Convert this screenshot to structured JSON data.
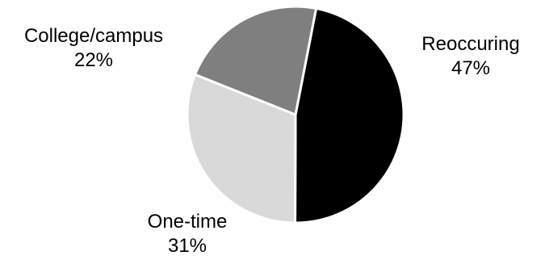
{
  "chart_data": {
    "type": "pie",
    "slices": [
      {
        "label": "Reoccuring",
        "value": 47,
        "value_label": "47%",
        "color": "#000000"
      },
      {
        "label": "One-time",
        "value": 31,
        "value_label": "31%",
        "color": "#d9d9d9"
      },
      {
        "label": "College/campus",
        "value": 22,
        "value_label": "22%",
        "color": "#7f7f7f"
      }
    ],
    "start": "top, slightly right of center",
    "direction": "clockwise",
    "slice_border_color": "#ffffff",
    "background": "#ffffff",
    "legend": "none"
  }
}
